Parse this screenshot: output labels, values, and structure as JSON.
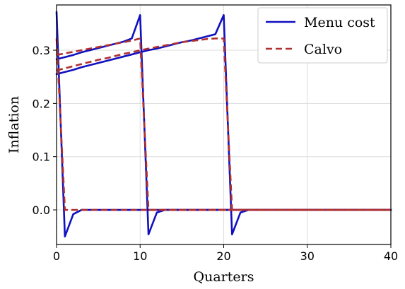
{
  "chart_data": {
    "type": "line",
    "title": "",
    "xlabel": "Quarters",
    "ylabel": "Inflation",
    "xlim": [
      0,
      40
    ],
    "ylim": [
      -0.065,
      0.385
    ],
    "x_ticks": [
      0,
      10,
      20,
      30,
      40
    ],
    "y_ticks": [
      0.0,
      0.1,
      0.2,
      0.3
    ],
    "x_tick_labels": [
      "0",
      "10",
      "20",
      "30",
      "40"
    ],
    "y_tick_labels": [
      "0.0",
      "0.1",
      "0.2",
      "0.3"
    ],
    "grid": true,
    "legend_position": "top-right",
    "series": [
      {
        "name": "Menu cost",
        "color": "#1010c0",
        "style": "solid",
        "segments": [
          {
            "x": [
              0,
              1,
              2,
              3,
              4,
              5,
              6,
              7,
              8,
              9,
              10,
              11,
              12,
              13,
              14,
              15,
              16,
              17,
              18,
              19,
              20,
              21,
              22,
              23,
              24,
              25,
              26,
              27,
              28,
              29,
              30,
              31,
              32,
              33,
              34,
              35,
              36,
              37,
              38,
              39,
              40
            ],
            "y": [
              0.283,
              0.287,
              0.291,
              0.296,
              0.3,
              0.304,
              0.308,
              0.312,
              0.316,
              0.322,
              0.366,
              -0.046,
              -0.005,
              0.0,
              0.0,
              0.0,
              0.0,
              0.0,
              0.0,
              0.0,
              0.0,
              0.0,
              0.0,
              0.0,
              0.0,
              0.0,
              0.0,
              0.0,
              0.0,
              0.0,
              0.0,
              0.0,
              0.0,
              0.0,
              0.0,
              0.0,
              0.0,
              0.0,
              0.0,
              0.0,
              0.0
            ]
          },
          {
            "x": [
              0,
              1,
              2,
              3,
              4,
              5,
              6,
              7,
              8,
              9,
              10,
              11,
              12,
              13,
              14,
              15,
              16,
              17,
              18,
              19,
              20,
              21,
              22,
              23,
              24,
              25,
              26,
              27,
              28,
              29,
              30,
              31,
              32,
              33,
              34,
              35,
              36,
              37,
              38,
              39,
              40
            ],
            "y": [
              0.255,
              0.259,
              0.263,
              0.268,
              0.272,
              0.276,
              0.28,
              0.284,
              0.288,
              0.292,
              0.296,
              0.3,
              0.303,
              0.307,
              0.311,
              0.315,
              0.318,
              0.322,
              0.326,
              0.33,
              0.366,
              -0.046,
              -0.005,
              0.0,
              0.0,
              0.0,
              0.0,
              0.0,
              0.0,
              0.0,
              0.0,
              0.0,
              0.0,
              0.0,
              0.0,
              0.0,
              0.0,
              0.0,
              0.0,
              0.0,
              0.0
            ]
          },
          {
            "x": [
              0,
              1,
              2,
              3,
              4,
              5,
              6,
              7,
              8,
              9,
              10,
              11,
              12,
              13,
              14,
              15,
              16,
              17,
              18,
              19,
              20,
              21,
              22,
              23,
              24,
              25,
              26,
              27,
              28,
              29,
              30,
              31,
              32,
              33,
              34,
              35,
              36,
              37,
              38,
              39,
              40
            ],
            "y": [
              0.372,
              -0.05,
              -0.008,
              0.0,
              0.0,
              0.0,
              0.0,
              0.0,
              0.0,
              0.0,
              0.0,
              0.0,
              0.0,
              0.0,
              0.0,
              0.0,
              0.0,
              0.0,
              0.0,
              0.0,
              0.0,
              0.0,
              0.0,
              0.0,
              0.0,
              0.0,
              0.0,
              0.0,
              0.0,
              0.0,
              0.0,
              0.0,
              0.0,
              0.0,
              0.0,
              0.0,
              0.0,
              0.0,
              0.0,
              0.0,
              0.0
            ]
          }
        ]
      },
      {
        "name": "Calvo",
        "color": "#b03030",
        "style": "dashed",
        "segments": [
          {
            "x": [
              0,
              1,
              2,
              3,
              4,
              5,
              6,
              7,
              8,
              9,
              10,
              11,
              12,
              13,
              14,
              15,
              16,
              17,
              18,
              19,
              20,
              21,
              22,
              23,
              24,
              25,
              26,
              27,
              28,
              29,
              30,
              31,
              32,
              33,
              34,
              35,
              36,
              37,
              38,
              39,
              40
            ],
            "y": [
              0.291,
              0.294,
              0.297,
              0.3,
              0.303,
              0.306,
              0.309,
              0.312,
              0.315,
              0.318,
              0.322,
              0.0,
              0.0,
              0.0,
              0.0,
              0.0,
              0.0,
              0.0,
              0.0,
              0.0,
              0.0,
              0.0,
              0.0,
              0.0,
              0.0,
              0.0,
              0.0,
              0.0,
              0.0,
              0.0,
              0.0,
              0.0,
              0.0,
              0.0,
              0.0,
              0.0,
              0.0,
              0.0,
              0.0,
              0.0,
              0.0
            ]
          },
          {
            "x": [
              0,
              1,
              2,
              3,
              4,
              5,
              6,
              7,
              8,
              9,
              10,
              11,
              12,
              13,
              14,
              15,
              16,
              17,
              18,
              19,
              20,
              21,
              22,
              23,
              24,
              25,
              26,
              27,
              28,
              29,
              30,
              31,
              32,
              33,
              34,
              35,
              36,
              37,
              38,
              39,
              40
            ],
            "y": [
              0.262,
              0.266,
              0.27,
              0.274,
              0.278,
              0.282,
              0.285,
              0.289,
              0.293,
              0.296,
              0.3,
              0.303,
              0.306,
              0.309,
              0.312,
              0.315,
              0.317,
              0.319,
              0.321,
              0.322,
              0.322,
              0.0,
              0.0,
              0.0,
              0.0,
              0.0,
              0.0,
              0.0,
              0.0,
              0.0,
              0.0,
              0.0,
              0.0,
              0.0,
              0.0,
              0.0,
              0.0,
              0.0,
              0.0,
              0.0,
              0.0
            ]
          },
          {
            "x": [
              0,
              1,
              2,
              3,
              4,
              5,
              6,
              7,
              8,
              9,
              10,
              11,
              12,
              13,
              14,
              15,
              16,
              17,
              18,
              19,
              20,
              21,
              22,
              23,
              24,
              25,
              26,
              27,
              28,
              29,
              30,
              31,
              32,
              33,
              34,
              35,
              36,
              37,
              38,
              39,
              40
            ],
            "y": [
              0.322,
              0.0,
              0.0,
              0.0,
              0.0,
              0.0,
              0.0,
              0.0,
              0.0,
              0.0,
              0.0,
              0.0,
              0.0,
              0.0,
              0.0,
              0.0,
              0.0,
              0.0,
              0.0,
              0.0,
              0.0,
              0.0,
              0.0,
              0.0,
              0.0,
              0.0,
              0.0,
              0.0,
              0.0,
              0.0,
              0.0,
              0.0,
              0.0,
              0.0,
              0.0,
              0.0,
              0.0,
              0.0,
              0.0,
              0.0,
              0.0
            ]
          }
        ]
      }
    ]
  }
}
